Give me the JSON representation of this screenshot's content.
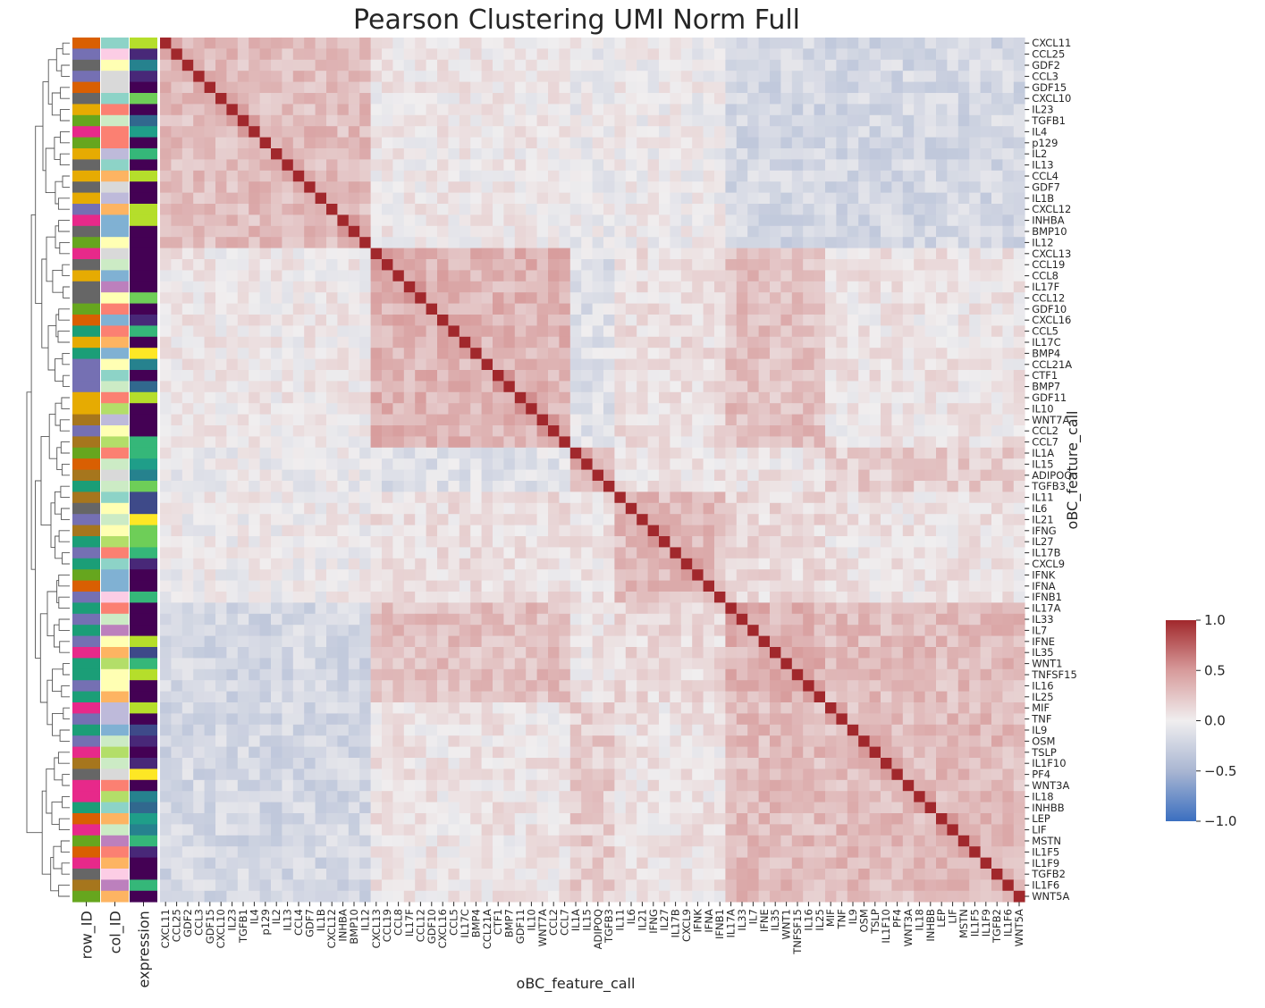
{
  "chart_data": {
    "type": "heatmap",
    "title": "Pearson Clustering UMI Norm Full",
    "xlabel": "oBC_feature_call",
    "ylabel": "oBC_feature_call",
    "colorbar": {
      "min": -1.0,
      "max": 1.0,
      "ticks": [
        "1.0",
        "0.5",
        "0.0",
        "−0.5",
        "−1.0"
      ],
      "colormap": "vlag"
    },
    "annotation_tracks": [
      "row_ID",
      "col_ID",
      "expression"
    ],
    "labels": [
      "CXCL11",
      "CCL25",
      "GDF2",
      "CCL3",
      "GDF15",
      "CXCL10",
      "IL23",
      "TGFB1",
      "IL4",
      "p129",
      "IL2",
      "IL13",
      "CCL4",
      "GDF7",
      "IL1B",
      "CXCL12",
      "INHBA",
      "BMP10",
      "IL12",
      "CXCL13",
      "CCL19",
      "CCL8",
      "IL17F",
      "CCL12",
      "GDF10",
      "CXCL16",
      "CCL5",
      "IL17C",
      "BMP4",
      "CCL21A",
      "CTF1",
      "BMP7",
      "GDF11",
      "IL10",
      "WNT7A",
      "CCL2",
      "CCL7",
      "IL1A",
      "IL15",
      "ADIPOQ",
      "TGFB3",
      "IL11",
      "IL6",
      "IL21",
      "IFNG",
      "IL27",
      "IL17B",
      "CXCL9",
      "IFNK",
      "IFNA",
      "IFNB1",
      "IL17A",
      "IL33",
      "IL7",
      "IFNE",
      "IL35",
      "WNT1",
      "TNFSF15",
      "IL16",
      "IL25",
      "MIF",
      "TNF",
      "IL9",
      "OSM",
      "TSLP",
      "IL1F10",
      "PF4",
      "WNT3A",
      "IL18",
      "INHBB",
      "LEP",
      "LIF",
      "MSTN",
      "IL1F5",
      "IL1F9",
      "TGFB2",
      "IL1F6",
      "WNT5A"
    ],
    "ticks_shown": [
      "CXCL11",
      "CCL25",
      "GDF2",
      "CCL3",
      "GDF15",
      "CXCL10",
      "IL23",
      "TGFB1",
      "IL4",
      "p129",
      "IL2",
      "IL13",
      "CCL4",
      "GDF7",
      "IL1B",
      "CXCL12",
      "INHBA",
      "BMP10",
      "IL12",
      "CXCL13",
      "CCL19",
      "CCL8",
      "IL17F",
      "CCL12",
      "GDF10",
      "CXCL16",
      "CCL5",
      "IL17C",
      "BMP4",
      "CCL21A",
      "CTF1",
      "BMP7",
      "GDF11",
      "IL10",
      "WNT7A",
      "CCL2",
      "CCL7",
      "IL1A",
      "IL15",
      "ADIPOQ",
      "TGFB3",
      "IL11",
      "IL6",
      "IL21",
      "IFNG",
      "IL27",
      "IL17B",
      "CXCL9",
      "IFNK",
      "IFNA",
      "IFNB1",
      "IL17A",
      "IL33",
      "IL7",
      "IFNE",
      "IL35",
      "WNT1",
      "TNFSF15",
      "IL16",
      "IL25",
      "MIF",
      "TNF",
      "IL9",
      "OSM",
      "TSLP",
      "IL1F10",
      "PF4",
      "WNT3A",
      "IL18",
      "INHBB",
      "LEP",
      "LIF",
      "MSTN",
      "IL1F5",
      "IL1F9",
      "TGFB2",
      "IL1F6",
      "WNT5A"
    ],
    "blocks": [
      {
        "from": "CXCL11",
        "to": "IL12",
        "mean_r": 0.3
      },
      {
        "from": "CXCL13",
        "to": "CCL7",
        "mean_r": 0.35
      },
      {
        "from": "IL1A",
        "to": "TGFB3",
        "mean_r": 0.25
      },
      {
        "from": "IL11",
        "to": "IFNB1",
        "mean_r": 0.3
      },
      {
        "from": "IL17A",
        "to": "IL25",
        "mean_r": 0.35
      },
      {
        "from": "MIF",
        "to": "WNT5A",
        "mean_r": 0.3
      }
    ],
    "diagonal": 1.0,
    "grid": false,
    "legend_placement": "right"
  }
}
